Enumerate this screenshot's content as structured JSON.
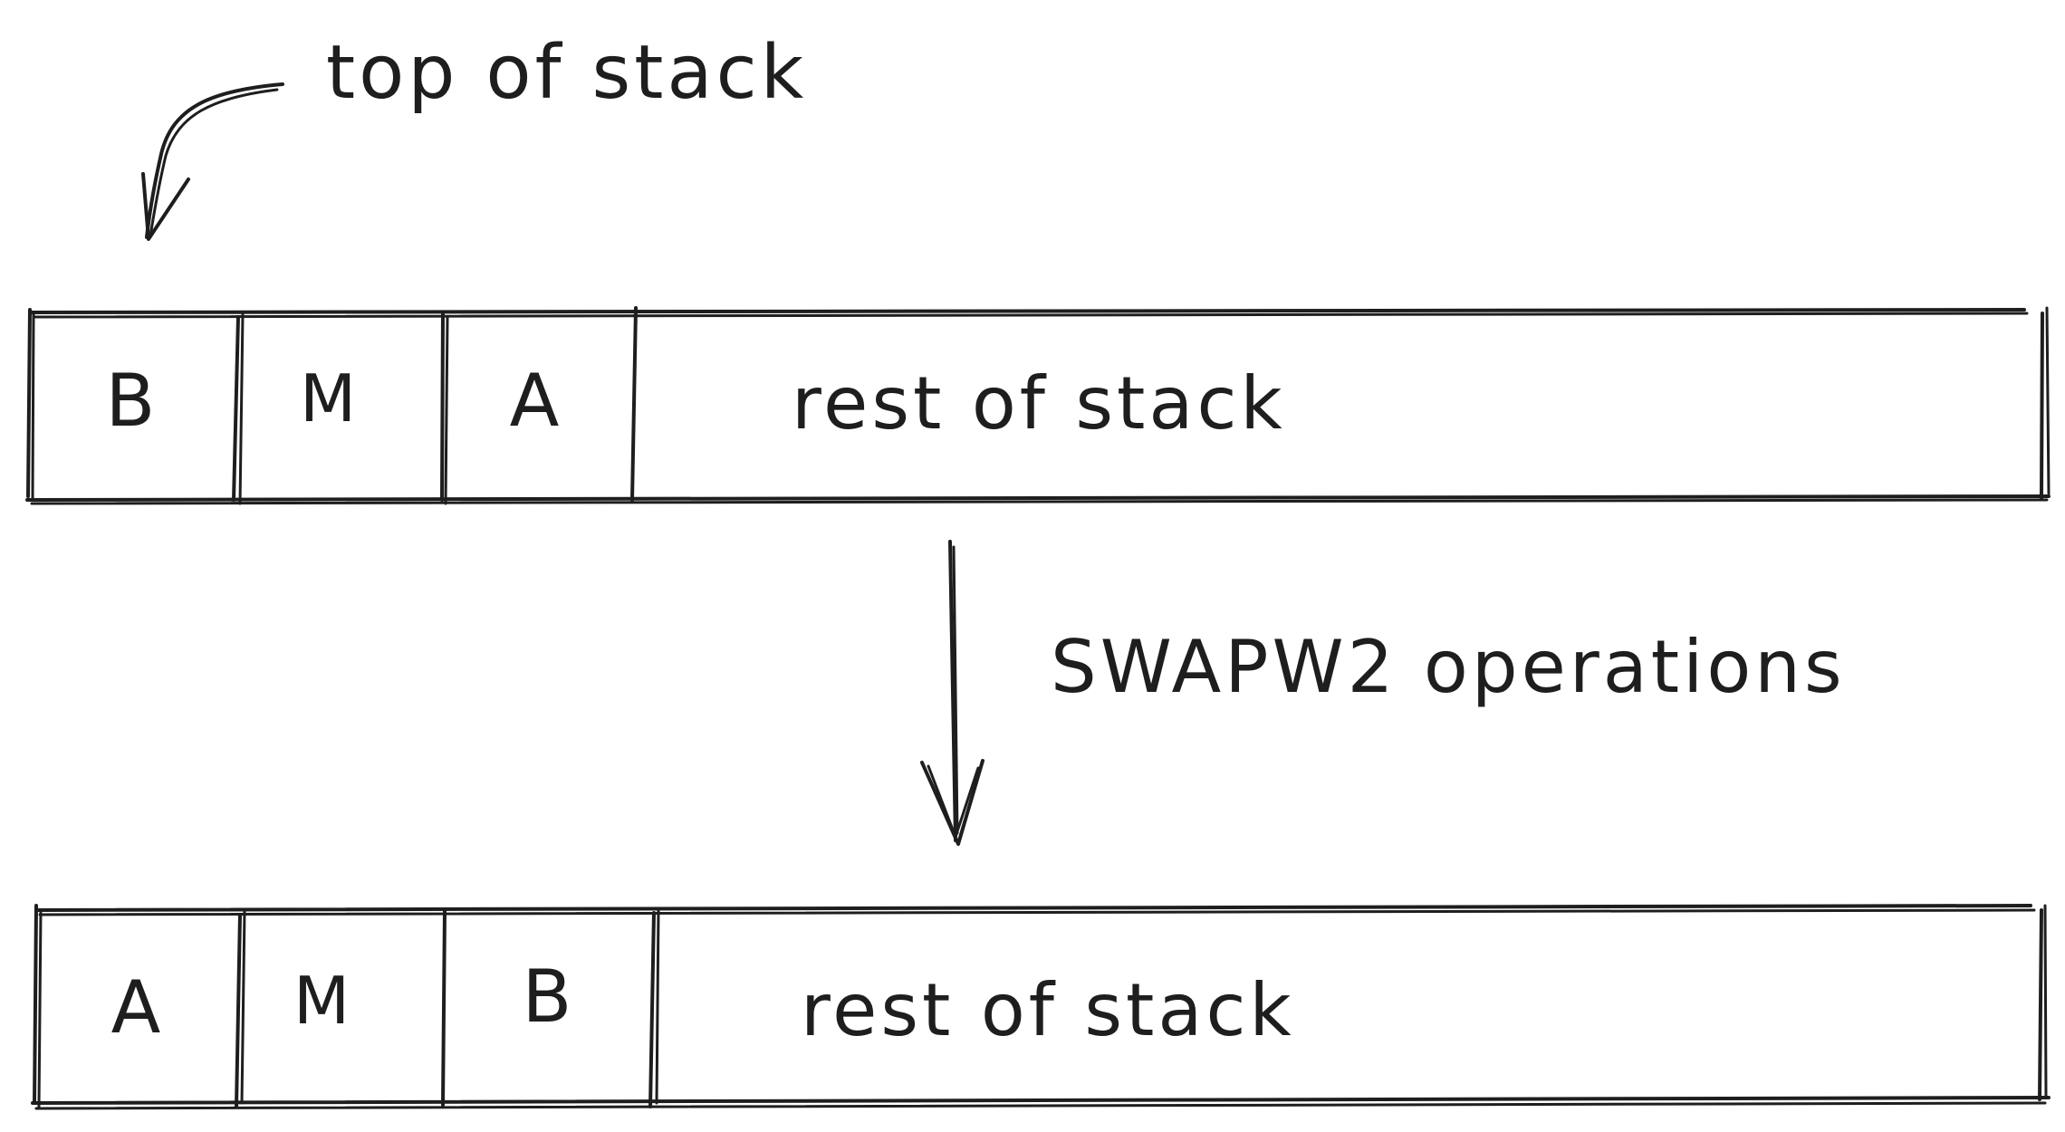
{
  "annotation": {
    "top_label": "top of stack",
    "operation_label": "SWAPW2 operations"
  },
  "stack_before": {
    "cells": [
      "B",
      "M",
      "A"
    ],
    "rest_label": "rest of stack"
  },
  "stack_after": {
    "cells": [
      "A",
      "M",
      "B"
    ],
    "rest_label": "rest of stack"
  },
  "colors": {
    "ink": "#1e1e1e",
    "background": "#ffffff"
  }
}
